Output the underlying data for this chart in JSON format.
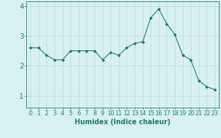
{
  "x": [
    0,
    1,
    2,
    3,
    4,
    5,
    6,
    7,
    8,
    9,
    10,
    11,
    12,
    13,
    14,
    15,
    16,
    17,
    18,
    19,
    20,
    21,
    22,
    23
  ],
  "y": [
    2.6,
    2.6,
    2.35,
    2.2,
    2.2,
    2.5,
    2.5,
    2.5,
    2.5,
    2.2,
    2.45,
    2.35,
    2.6,
    2.75,
    2.8,
    3.6,
    3.9,
    3.4,
    3.05,
    2.35,
    2.2,
    1.5,
    1.3,
    1.2
  ],
  "line_color": "#1a7a6e",
  "marker": "D",
  "marker_size": 2.0,
  "bg_color": "#d8f0f0",
  "grid_color": "#b8d8d8",
  "xlabel": "Humidex (Indice chaleur)",
  "ylim": [
    0.6,
    4.15
  ],
  "xlim": [
    -0.5,
    23.5
  ],
  "yticks": [
    1,
    2,
    3,
    4
  ],
  "xticks": [
    0,
    1,
    2,
    3,
    4,
    5,
    6,
    7,
    8,
    9,
    10,
    11,
    12,
    13,
    14,
    15,
    16,
    17,
    18,
    19,
    20,
    21,
    22,
    23
  ],
  "tick_label_color": "#1a7a6e",
  "axis_color": "#1a7a6e",
  "xlabel_color": "#1a7a6e",
  "xlabel_fontsize": 7,
  "tick_fontsize": 6,
  "ytick_fontsize": 7
}
